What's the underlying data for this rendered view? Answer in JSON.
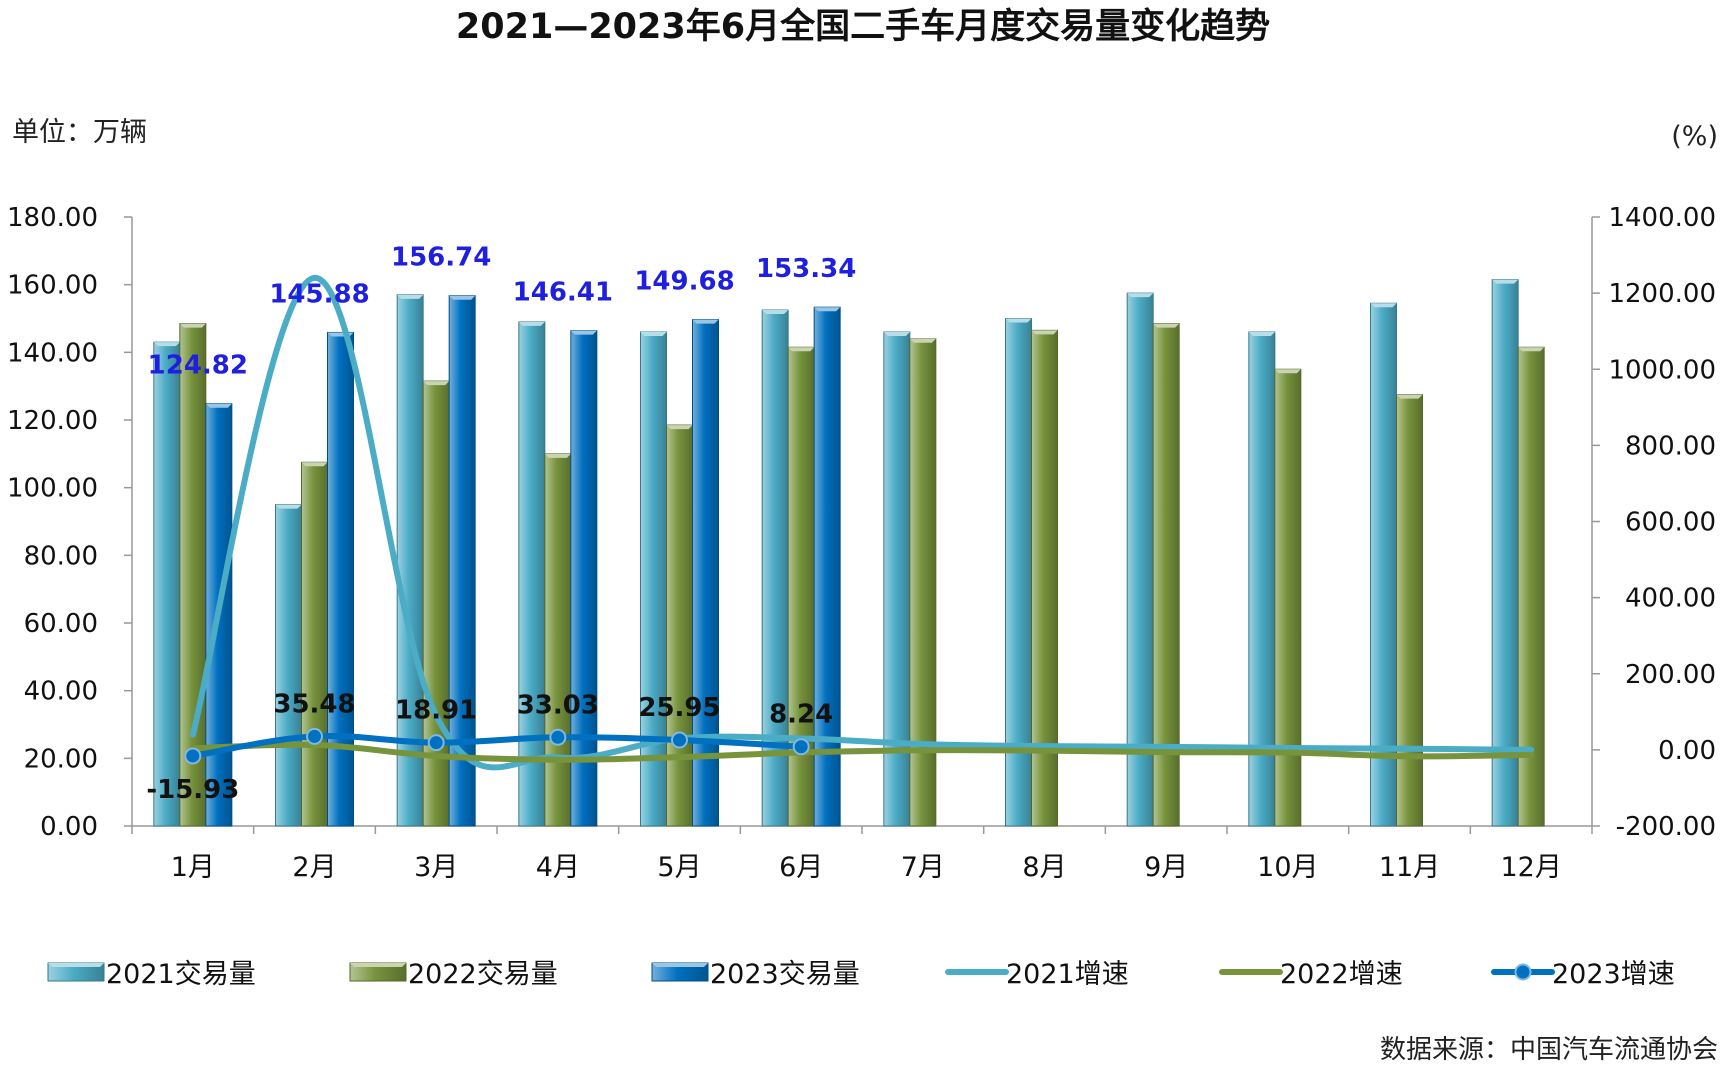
{
  "chart_data": {
    "title": "2021—2023年6月全国二手车月度交易量变化趋势",
    "left_unit_label": "单位：万辆",
    "right_unit_label": "(%)",
    "source": "数据来源：中国汽车流通协会",
    "type": "bar",
    "categories": [
      "1月",
      "2月",
      "3月",
      "4月",
      "5月",
      "6月",
      "7月",
      "8月",
      "9月",
      "10月",
      "11月",
      "12月"
    ],
    "y_left": {
      "min": 0,
      "max": 180,
      "step": 20,
      "ticks": [
        "0.00",
        "20.00",
        "40.00",
        "60.00",
        "80.00",
        "100.00",
        "120.00",
        "140.00",
        "160.00",
        "180.00"
      ]
    },
    "y_right": {
      "min": -200,
      "max": 1400,
      "step": 200,
      "ticks": [
        "-200.00",
        "0.00",
        "200.00",
        "400.00",
        "600.00",
        "800.00",
        "1000.00",
        "1200.00",
        "1400.00"
      ]
    },
    "bar_series": [
      {
        "name": "2021交易量",
        "color": "#4bacc6",
        "values": [
          143.0,
          95.0,
          157.0,
          149.0,
          146.0,
          152.5,
          146.0,
          150.0,
          157.5,
          146.0,
          154.5,
          161.5
        ]
      },
      {
        "name": "2022交易量",
        "color": "#77933c",
        "values": [
          148.5,
          107.5,
          131.5,
          110.0,
          118.5,
          141.5,
          144.0,
          146.5,
          148.5,
          135.0,
          127.5,
          141.5
        ]
      },
      {
        "name": "2023交易量",
        "color": "#0070c0",
        "values": [
          124.82,
          145.88,
          156.74,
          146.41,
          149.68,
          153.34
        ],
        "labels": [
          "124.82",
          "145.88",
          "156.74",
          "146.41",
          "149.68",
          "153.34"
        ],
        "label_color": "#1f1fe0"
      }
    ],
    "line_series": [
      {
        "name": "2021增速",
        "color": "#4bacc6",
        "values": [
          40,
          1240,
          90,
          -20,
          30,
          30,
          15,
          10,
          8,
          5,
          3,
          0
        ]
      },
      {
        "name": "2022增速",
        "color": "#77933c",
        "values": [
          4,
          13,
          -16,
          -26,
          -19,
          -7,
          -1,
          -2,
          -6,
          -7,
          -17,
          -13
        ]
      },
      {
        "name": "2023增速",
        "color": "#0070c0",
        "markers": true,
        "values": [
          -15.93,
          35.48,
          18.91,
          33.03,
          25.95,
          8.24
        ],
        "labels": [
          "-15.93",
          "35.48",
          "18.91",
          "33.03",
          "25.95",
          "8.24"
        ],
        "label_color": "#111111"
      }
    ],
    "legend": {
      "position": "bottom",
      "items": [
        {
          "name": "2021交易量",
          "kind": "bar",
          "color": "#4bacc6"
        },
        {
          "name": "2022交易量",
          "kind": "bar",
          "color": "#77933c"
        },
        {
          "name": "2023交易量",
          "kind": "bar",
          "color": "#0070c0"
        },
        {
          "name": "2021增速",
          "kind": "line",
          "color": "#4bacc6"
        },
        {
          "name": "2022增速",
          "kind": "line",
          "color": "#77933c"
        },
        {
          "name": "2023增速",
          "kind": "line-marker",
          "color": "#0070c0"
        }
      ]
    },
    "grid": false
  }
}
